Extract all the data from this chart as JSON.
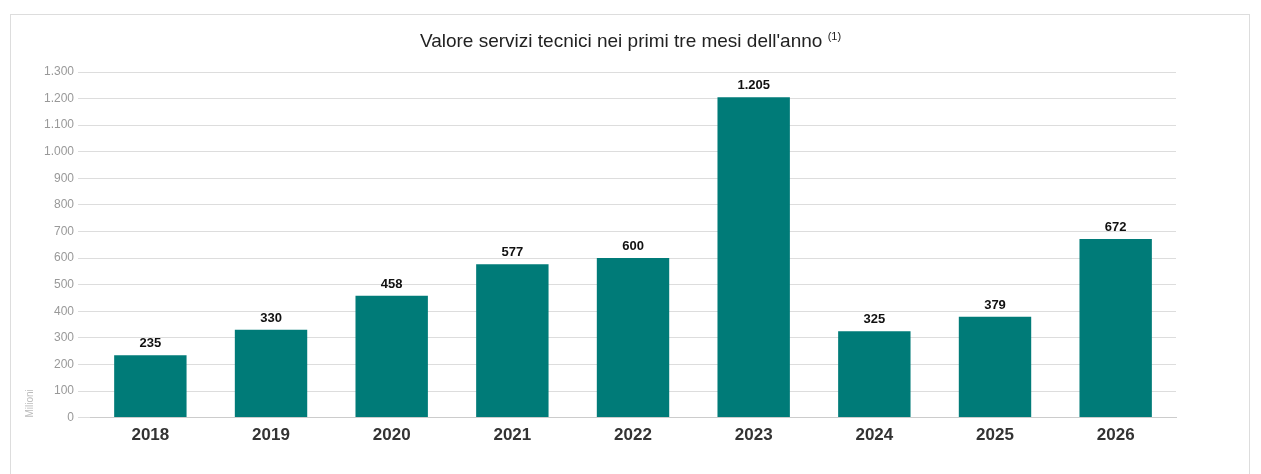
{
  "chart_data": {
    "type": "bar",
    "title": "Valore servizi tecnici nei primi tre mesi dell'anno $^{(1)}$",
    "ylabel": "Milioni",
    "categories": [
      "2018",
      "2019",
      "2020",
      "2021",
      "2022",
      "2023",
      "2024",
      "2025",
      "2026"
    ],
    "values": [
      235,
      330,
      458,
      577,
      600,
      1205,
      325,
      379,
      672
    ],
    "color": "#007b78",
    "ylim": [
      0,
      1300
    ],
    "yticks": [
      0,
      100,
      200,
      300,
      400,
      500,
      600,
      700,
      800,
      900,
      {
        "value": 1000,
        "label": "1.000"
      },
      {
        "value": 1100,
        "label": "1.100"
      },
      {
        "value": 1200,
        "label": "1.200"
      },
      {
        "value": 1300,
        "label": "1.300"
      }
    ],
    "grid": "y",
    "data_labels": true,
    "value_labels": [
      "235",
      "330",
      "458",
      "577",
      "600",
      "1.205",
      "325",
      "379",
      "672"
    ]
  }
}
